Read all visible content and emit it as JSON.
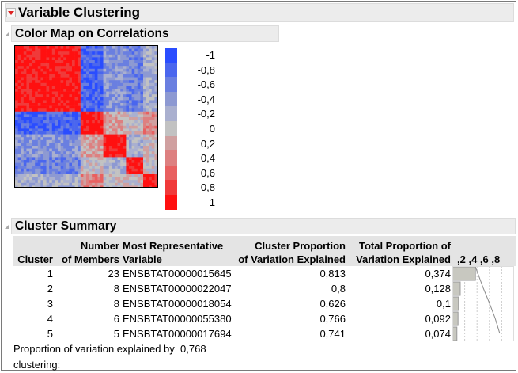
{
  "title": "Variable Clustering",
  "color_map": {
    "title": "Color Map on Correlations",
    "legend_labels": [
      "-1",
      "-0,8",
      "-0,6",
      "-0,4",
      "-0,2",
      "0",
      "0,2",
      "0,4",
      "0,6",
      "0,8",
      "1"
    ],
    "legend_colors": [
      "#2a4dff",
      "#4a66ee",
      "#6a7fe0",
      "#8d99d2",
      "#aab0cf",
      "#c2c2c2",
      "#d0a0a0",
      "#dd8080",
      "#e86060",
      "#f03a3a",
      "#ff1010"
    ]
  },
  "summary": {
    "title": "Cluster Summary",
    "headers": [
      "Cluster",
      "Number of Members",
      "Most Representative Variable",
      "Cluster Proportion of Variation Explained",
      "Total Proportion of Variation Explained"
    ],
    "h1": [
      "",
      "Number",
      "Most Representative",
      "Cluster Proportion",
      "Total Proportion of"
    ],
    "h2": [
      "Cluster",
      "of Members",
      "Variable",
      "of Variation Explained",
      "Variation Explained"
    ],
    "axis_ticks": ",2 ,4 ,6 ,8",
    "rows": [
      {
        "cluster": "1",
        "members": "23",
        "variable": "ENSBTAT00000015645",
        "cluster_prop": "0,813",
        "total_prop": "0,374",
        "value": 0.374
      },
      {
        "cluster": "2",
        "members": "8",
        "variable": "ENSBTAT00000022047",
        "cluster_prop": "0,8",
        "total_prop": "0,128",
        "value": 0.128
      },
      {
        "cluster": "3",
        "members": "8",
        "variable": "ENSBTAT00000018054",
        "cluster_prop": "0,626",
        "total_prop": "0,1",
        "value": 0.1
      },
      {
        "cluster": "4",
        "members": "6",
        "variable": "ENSBTAT00000055380",
        "cluster_prop": "0,766",
        "total_prop": "0,092",
        "value": 0.092
      },
      {
        "cluster": "5",
        "members": "5",
        "variable": "ENSBTAT00000017694",
        "cluster_prop": "0,741",
        "total_prop": "0,074",
        "value": 0.074
      }
    ],
    "footer_label_1": "Proportion of variation explained by",
    "footer_label_2": "clustering:",
    "footer_value": "0,768"
  }
}
